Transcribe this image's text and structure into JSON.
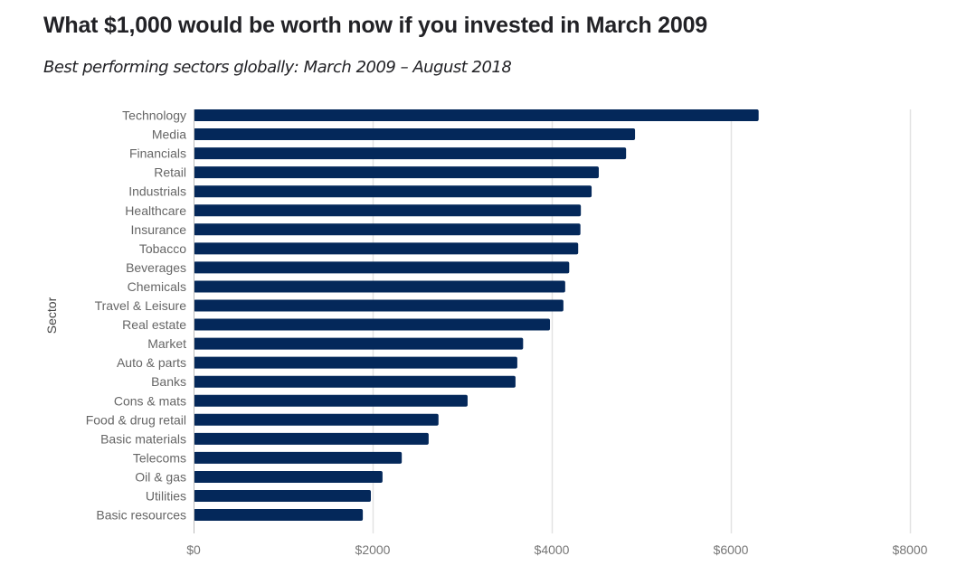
{
  "chart_data": {
    "type": "bar",
    "orientation": "horizontal",
    "title": "What $1,000 would be worth now if you invested in March 2009",
    "subtitle": "Best performing sectors globally: March 2009 – August 2018",
    "xlabel": "",
    "ylabel": "Sector",
    "xlim": [
      0,
      8000
    ],
    "grid": true,
    "bar_color": "#04285a",
    "categories": [
      "Technology",
      "Media",
      "Financials",
      "Retail",
      "Industrials",
      "Healthcare",
      "Insurance",
      "Tobacco",
      "Beverages",
      "Chemicals",
      "Travel & Leisure",
      "Real estate",
      "Market",
      "Auto & parts",
      "Banks",
      "Cons & mats",
      "Food & drug retail",
      "Basic materials",
      "Telecoms",
      "Oil & gas",
      "Utilities",
      "Basic resources"
    ],
    "values": [
      6310,
      4930,
      4830,
      4525,
      4445,
      4325,
      4320,
      4295,
      4195,
      4150,
      4130,
      3980,
      3680,
      3615,
      3595,
      3060,
      2735,
      2625,
      2325,
      2110,
      1980,
      1890
    ],
    "x_ticks": [
      0,
      2000,
      4000,
      6000,
      8000
    ],
    "x_tick_labels": [
      "$0",
      "$2000",
      "$4000",
      "$6000",
      "$8000"
    ]
  }
}
